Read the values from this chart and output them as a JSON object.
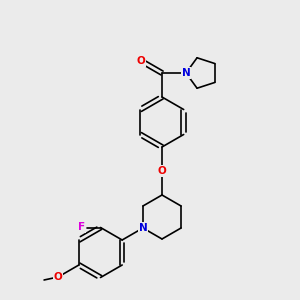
{
  "bg_color": "#ebebeb",
  "bond_color": "#000000",
  "atom_colors": {
    "N": "#0000dd",
    "O": "#ee0000",
    "F": "#dd00dd",
    "C": "#000000"
  },
  "figsize": [
    3.0,
    3.0
  ],
  "dpi": 100
}
